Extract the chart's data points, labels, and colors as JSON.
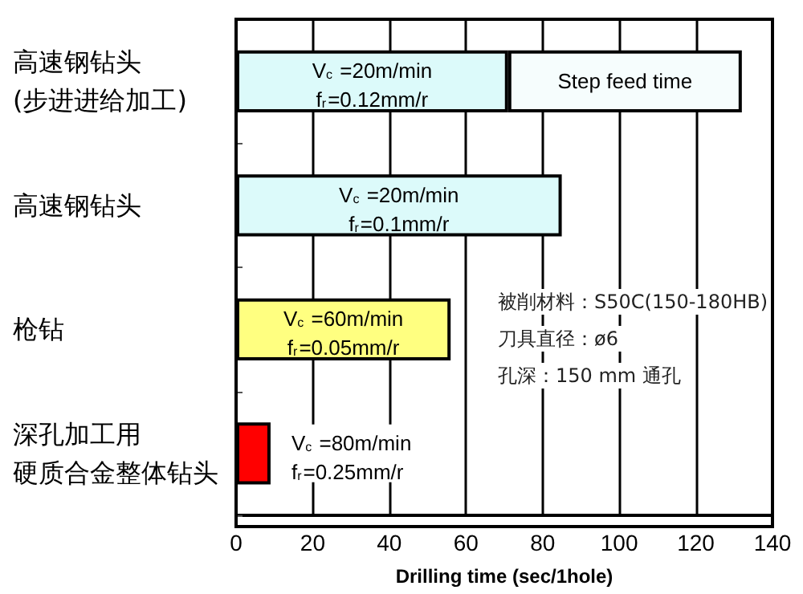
{
  "chart_data": {
    "type": "bar",
    "orientation": "horizontal",
    "stacked": true,
    "categories": [
      "高速钢钻头(步进进给加工)",
      "高速钢钻头",
      "枪钻",
      "深孔加工用硬质合金整体钻头"
    ],
    "series": [
      {
        "colors": [
          "#dcfafa",
          "#dcfafa",
          "#ffff80",
          "#ff0000"
        ],
        "values": [
          71,
          85,
          56,
          9
        ],
        "value_labels": [
          "V$_{c}$ =20m/min\nf$_{r}$=0.12mm/r",
          "V$_{c}$ =20m/min\nf$_{r}$=0.1mm/r",
          "V$_{c}$ =60m/min\nf$_{r}$=0.05mm/r",
          "V$_{c}$ =80m/min\nf$_{r}$=0.25mm/r"
        ]
      },
      {
        "name": "Step feed time",
        "color": "#f6fdfd",
        "values": [
          61,
          null,
          null,
          null
        ]
      }
    ],
    "xlim": [
      0,
      140
    ],
    "xticks": [
      0,
      20,
      40,
      60,
      80,
      100,
      120,
      140
    ],
    "xlabel": "Drilling time (sec/1hole)",
    "grid": "x",
    "legend": false,
    "annotations": [
      "被削材料：S50C(150-180HB)",
      "刀具直径：ø6",
      "孔深：150 mm 通孔"
    ]
  }
}
